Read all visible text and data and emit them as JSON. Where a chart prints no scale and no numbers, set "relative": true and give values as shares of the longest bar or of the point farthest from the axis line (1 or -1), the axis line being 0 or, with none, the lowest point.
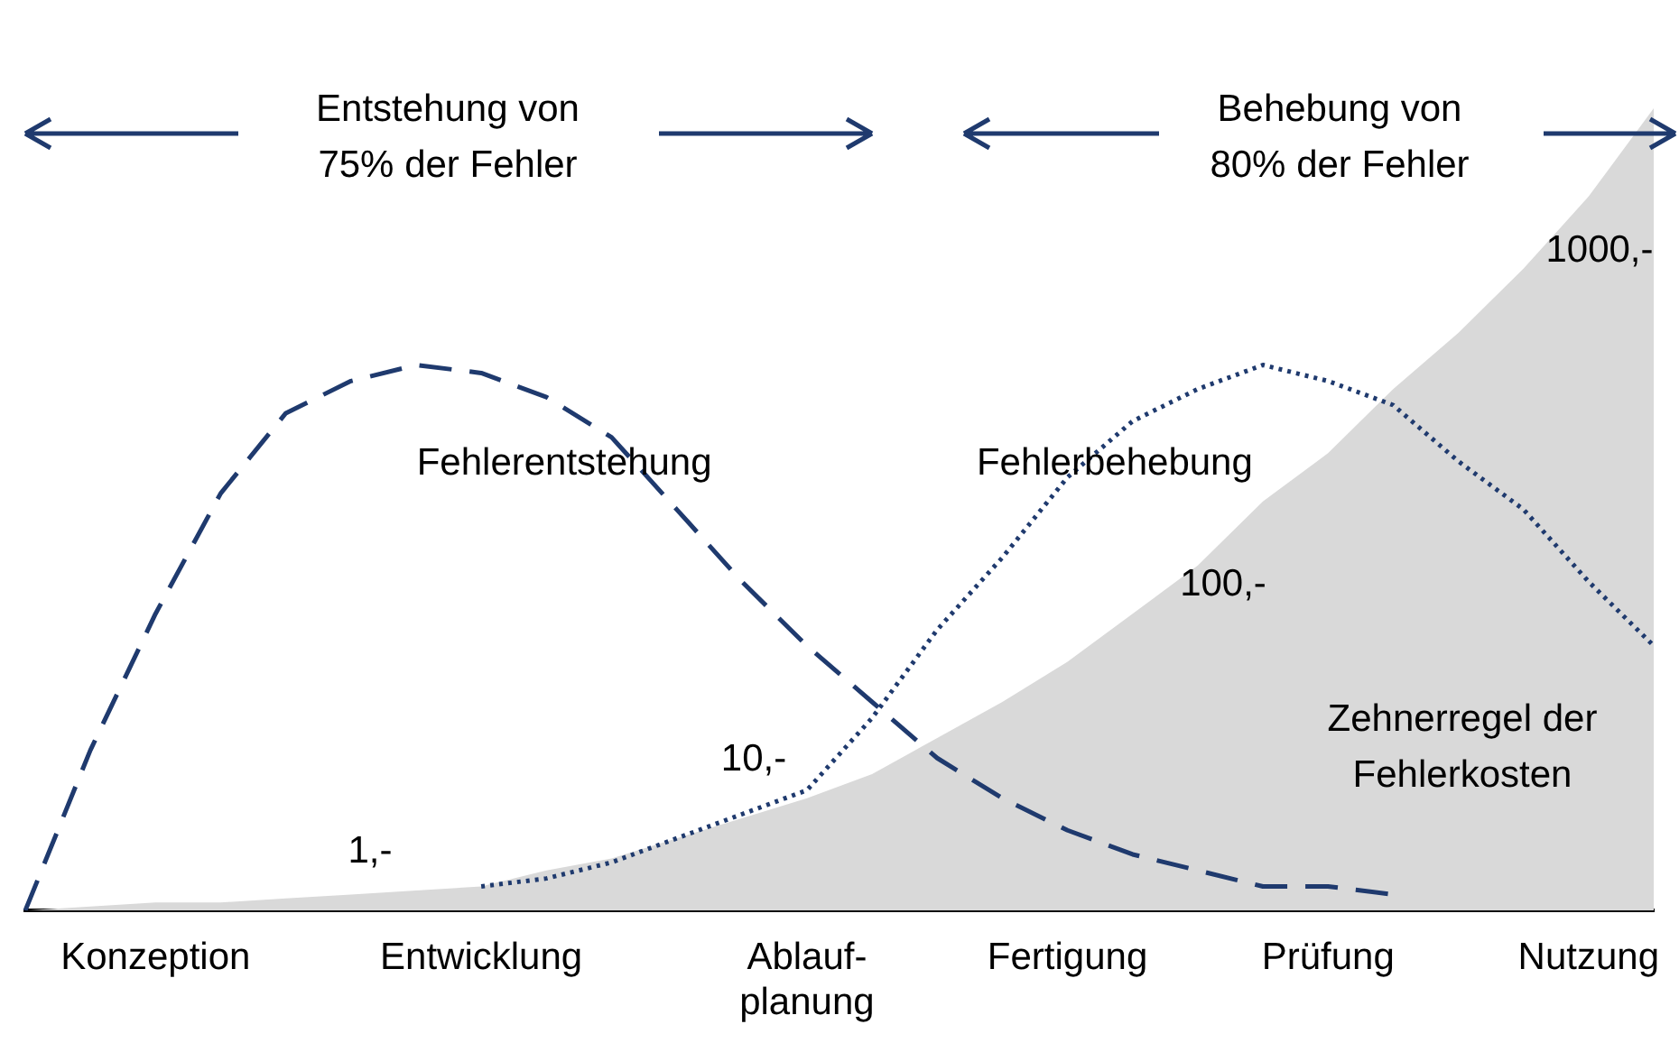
{
  "chart_data": {
    "type": "line",
    "relative": true,
    "grid": false,
    "legend": false,
    "marker": "none",
    "tick_labels": "x",
    "categories": [
      null,
      null,
      "Konzeption",
      null,
      null,
      null,
      null,
      "Entwicklung",
      null,
      null,
      null,
      null,
      "Ablauf-planung",
      null,
      null,
      null,
      "Fertigung",
      null,
      null,
      null,
      "Prüfung",
      null,
      null,
      null,
      "Nutzung",
      null
    ],
    "series": [
      {
        "type": "area",
        "color": "#d9d9d9",
        "values": [
          0,
          0.005,
          0.01,
          0.01,
          0.015,
          0.02,
          0.025,
          0.03,
          0.05,
          0.065,
          0.09,
          0.115,
          0.14,
          0.17,
          0.215,
          0.26,
          0.31,
          0.37,
          0.43,
          0.51,
          0.57,
          0.65,
          0.72,
          0.8,
          0.89,
          1
        ]
      },
      {
        "name": "Fehlerentstehung",
        "color": "#1f3a6e",
        "line_style": "dashed",
        "values": [
          0,
          0.2,
          0.37,
          0.52,
          0.62,
          0.66,
          0.68,
          0.67,
          0.64,
          0.59,
          0.5,
          0.41,
          0.33,
          0.26,
          0.19,
          0.14,
          0.1,
          0.07,
          0.05,
          0.03,
          0.03,
          0.02,
          null,
          null,
          null,
          null
        ]
      },
      {
        "name": "Fehlerbehebung",
        "color": "#1f3a6e",
        "line_style": "dotted",
        "values": [
          null,
          null,
          null,
          null,
          null,
          null,
          null,
          0.03,
          0.04,
          0.06,
          0.09,
          0.12,
          0.15,
          0.24,
          0.35,
          0.44,
          0.54,
          0.61,
          0.65,
          0.68,
          0.66,
          0.63,
          0.56,
          0.5,
          0.41,
          0.33
        ]
      }
    ],
    "annotations": [
      "Entstehung von 75% der Fehler",
      "Behebung von 80% der Fehler",
      "Zehnerregel der Fehlerkosten",
      "1,-",
      "10,-",
      "100,-",
      "1000,-"
    ]
  }
}
